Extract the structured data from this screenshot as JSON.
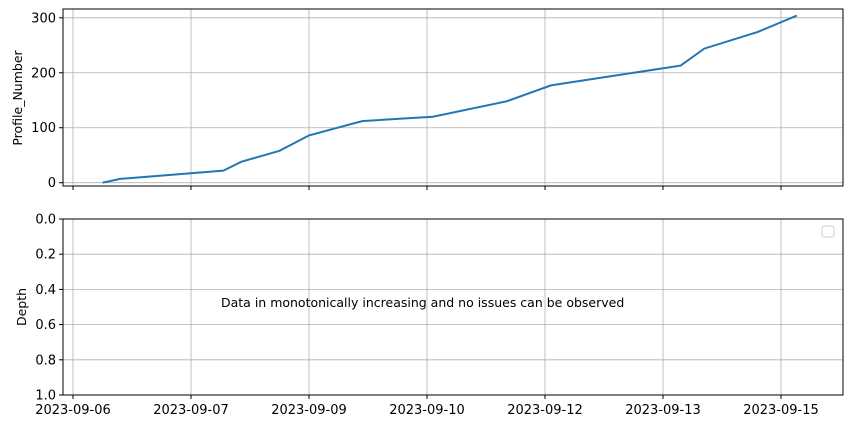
{
  "chart_data": [
    {
      "type": "line",
      "ylabel": "Profile_Number",
      "ylim": [
        -6,
        316
      ],
      "yticks": [
        0,
        100,
        200,
        300
      ],
      "xticks": [
        "2023-09-06",
        "2023-09-07",
        "2023-09-09",
        "2023-09-10",
        "2023-09-12",
        "2023-09-13",
        "2023-09-15"
      ],
      "xtick_labels_visible": false,
      "grid": true,
      "series": [
        {
          "color": "#1f77b4",
          "x": [
            "2023-09-06",
            "2023-09-06",
            "2023-09-07",
            "2023-09-07",
            "2023-09-08",
            "2023-09-09",
            "2023-09-09",
            "2023-09-10",
            "2023-09-11",
            "2023-09-12",
            "2023-09-13",
            "2023-09-13",
            "2023-09-14",
            "2023-09-15"
          ],
          "y": [
            0,
            7,
            22,
            38,
            58,
            86,
            112,
            120,
            148,
            177,
            213,
            244,
            274,
            304
          ]
        }
      ]
    },
    {
      "type": "line",
      "ylabel": "Depth",
      "ylim": [
        1.0,
        0.0
      ],
      "yticks": [
        "0.0",
        "0.2",
        "0.4",
        "0.6",
        "0.8",
        "1.0"
      ],
      "xticks": [
        "2023-09-06",
        "2023-09-07",
        "2023-09-09",
        "2023-09-10",
        "2023-09-12",
        "2023-09-13",
        "2023-09-15"
      ],
      "grid": true,
      "legend": "top-right",
      "annotation": "Data in monotonically increasing and no issues can be observed",
      "series": []
    }
  ]
}
